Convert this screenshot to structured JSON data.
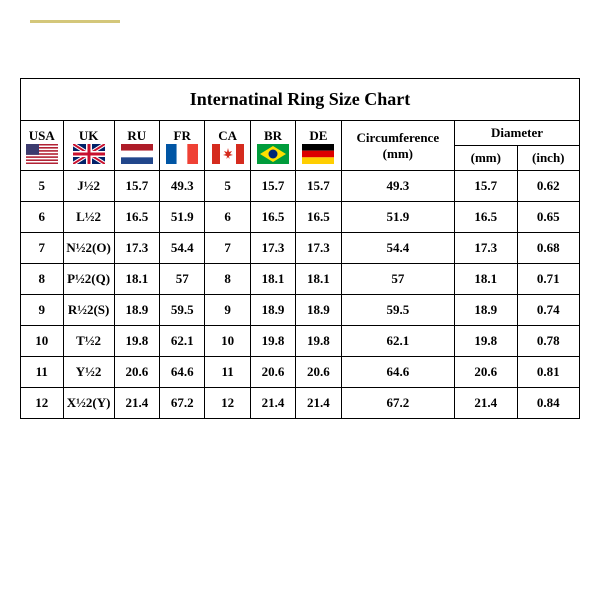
{
  "title": "Internatinal Ring Size Chart",
  "headers": {
    "usa": "USA",
    "uk": "UK",
    "ru": "RU",
    "fr": "FR",
    "ca": "CA",
    "br": "BR",
    "de": "DE",
    "circumference": "Circumference (mm)",
    "diameter": "Diameter",
    "dmm": "(mm)",
    "dinch": "(inch)"
  },
  "flags": {
    "usa": {
      "type": "usa"
    },
    "uk": {
      "type": "uk"
    },
    "ru": {
      "type": "ru"
    },
    "fr": {
      "type": "fr"
    },
    "ca": {
      "type": "ca"
    },
    "br": {
      "type": "br"
    },
    "de": {
      "type": "de"
    }
  },
  "rows": [
    {
      "usa": "5",
      "uk": "J½2",
      "ru": "15.7",
      "fr": "49.3",
      "ca": "5",
      "br": "15.7",
      "de": "15.7",
      "circ": "49.3",
      "dmm": "15.7",
      "din": "0.62"
    },
    {
      "usa": "6",
      "uk": "L½2",
      "ru": "16.5",
      "fr": "51.9",
      "ca": "6",
      "br": "16.5",
      "de": "16.5",
      "circ": "51.9",
      "dmm": "16.5",
      "din": "0.65"
    },
    {
      "usa": "7",
      "uk": "N½2(O)",
      "ru": "17.3",
      "fr": "54.4",
      "ca": "7",
      "br": "17.3",
      "de": "17.3",
      "circ": "54.4",
      "dmm": "17.3",
      "din": "0.68"
    },
    {
      "usa": "8",
      "uk": "P½2(Q)",
      "ru": "18.1",
      "fr": "57",
      "ca": "8",
      "br": "18.1",
      "de": "18.1",
      "circ": "57",
      "dmm": "18.1",
      "din": "0.71"
    },
    {
      "usa": "9",
      "uk": "R½2(S)",
      "ru": "18.9",
      "fr": "59.5",
      "ca": "9",
      "br": "18.9",
      "de": "18.9",
      "circ": "59.5",
      "dmm": "18.9",
      "din": "0.74"
    },
    {
      "usa": "10",
      "uk": "T½2",
      "ru": "19.8",
      "fr": "62.1",
      "ca": "10",
      "br": "19.8",
      "de": "19.8",
      "circ": "62.1",
      "dmm": "19.8",
      "din": "0.78"
    },
    {
      "usa": "11",
      "uk": "Y½2",
      "ru": "20.6",
      "fr": "64.6",
      "ca": "11",
      "br": "20.6",
      "de": "20.6",
      "circ": "64.6",
      "dmm": "20.6",
      "din": "0.81"
    },
    {
      "usa": "12",
      "uk": "X½2(Y)",
      "ru": "21.4",
      "fr": "67.2",
      "ca": "12",
      "br": "21.4",
      "de": "21.4",
      "circ": "67.2",
      "dmm": "21.4",
      "din": "0.84"
    }
  ],
  "styling": {
    "border_color": "#000000",
    "background": "#ffffff",
    "title_fontsize": 18,
    "header_fontsize": 13,
    "cell_fontsize": 13,
    "font_family": "Times New Roman",
    "gold_line_color": "#d4c77a"
  }
}
